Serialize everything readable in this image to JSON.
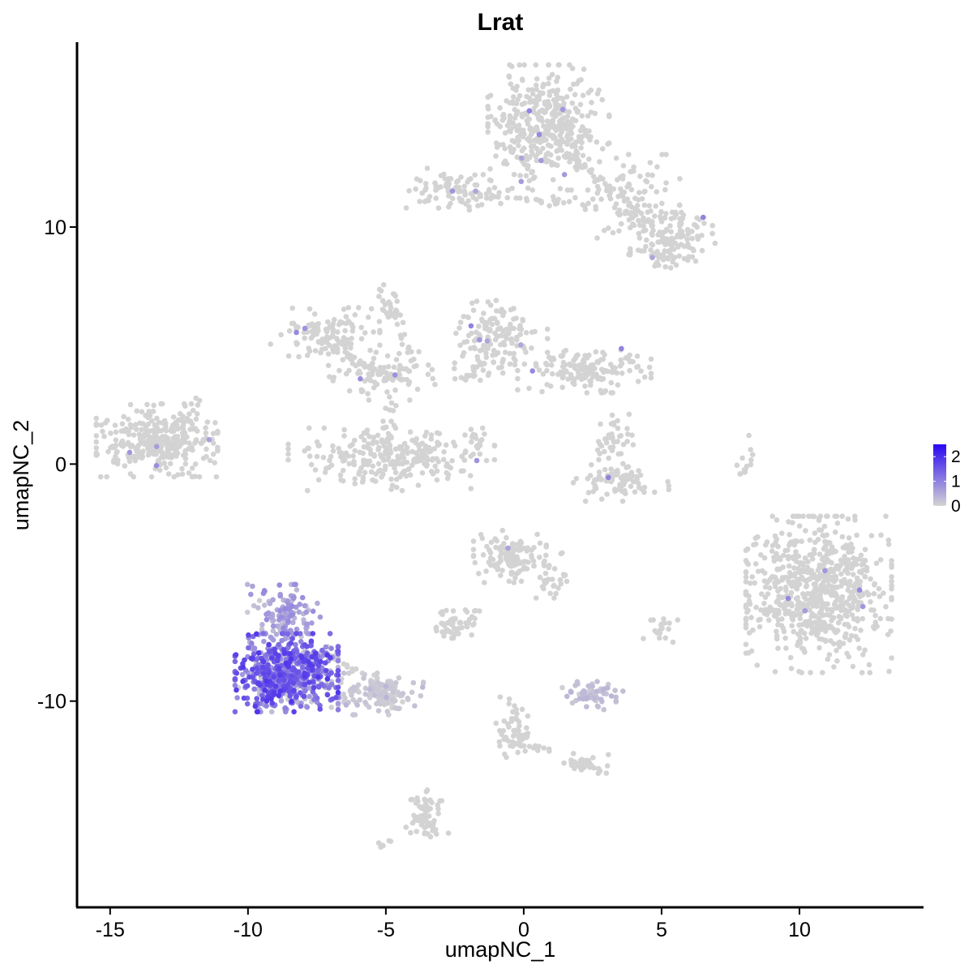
{
  "chart_data": {
    "type": "scatter",
    "title": "Lrat",
    "xlabel": "umapNC_1",
    "ylabel": "umapNC_2",
    "xlim": [
      -16.2,
      14.5
    ],
    "ylim": [
      -18.7,
      17.8
    ],
    "x_ticks": [
      -15,
      -10,
      -5,
      0,
      5,
      10
    ],
    "y_ticks": [
      -10,
      0,
      10
    ],
    "grid": false,
    "point_color_low": "#d3d3d3",
    "point_color_high": "#2a08f2",
    "legend": {
      "placement": "right",
      "min": 0,
      "max": 2.5,
      "ticks": [
        0,
        1,
        2
      ]
    },
    "clusters": [
      {
        "center": [
          0.9,
          14.2
        ],
        "spread": [
          1.0,
          1.2
        ],
        "n": 420,
        "expr": 0
      },
      {
        "center": [
          -2.4,
          11.6
        ],
        "spread": [
          0.9,
          0.4
        ],
        "n": 90,
        "expr": 0
      },
      {
        "center": [
          3.9,
          11.3
        ],
        "spread": [
          0.8,
          0.8
        ],
        "n": 90,
        "expr": 0
      },
      {
        "center": [
          5.4,
          9.6
        ],
        "spread": [
          0.7,
          0.6
        ],
        "n": 110,
        "expr": 0
      },
      {
        "center": [
          4.8,
          8.8
        ],
        "spread": [
          0.5,
          0.3
        ],
        "n": 30,
        "expr": 0
      },
      {
        "center": [
          -7.2,
          5.5
        ],
        "spread": [
          0.9,
          0.5
        ],
        "n": 110,
        "expr": 0
      },
      {
        "center": [
          -5.1,
          3.8
        ],
        "spread": [
          0.9,
          0.5
        ],
        "n": 90,
        "expr": 0
      },
      {
        "center": [
          -0.9,
          5.3
        ],
        "spread": [
          0.8,
          0.8
        ],
        "n": 150,
        "expr": 0
      },
      {
        "center": [
          2.2,
          4.0
        ],
        "spread": [
          1.1,
          0.45
        ],
        "n": 150,
        "expr": 0
      },
      {
        "center": [
          -4.8,
          0.2
        ],
        "spread": [
          1.7,
          0.6
        ],
        "n": 260,
        "expr": 0
      },
      {
        "center": [
          -13.3,
          1.0
        ],
        "spread": [
          1.0,
          0.7
        ],
        "n": 320,
        "expr": 0
      },
      {
        "center": [
          3.5,
          -0.8
        ],
        "spread": [
          0.8,
          0.35
        ],
        "n": 80,
        "expr": 0
      },
      {
        "center": [
          3.2,
          0.8
        ],
        "spread": [
          0.35,
          0.6
        ],
        "n": 45,
        "expr": 0
      },
      {
        "center": [
          -0.5,
          -3.9
        ],
        "spread": [
          0.6,
          0.5
        ],
        "n": 110,
        "expr": 0
      },
      {
        "center": [
          1.0,
          -4.8
        ],
        "spread": [
          0.4,
          0.5
        ],
        "n": 35,
        "expr": 0
      },
      {
        "center": [
          10.7,
          -5.5
        ],
        "spread": [
          1.2,
          1.5
        ],
        "n": 700,
        "expr": 0
      },
      {
        "center": [
          -2.6,
          -6.8
        ],
        "spread": [
          0.4,
          0.3
        ],
        "n": 45,
        "expr": 0
      },
      {
        "center": [
          -8.6,
          -8.8
        ],
        "spread": [
          0.85,
          0.75
        ],
        "n": 600,
        "expr": 1.25
      },
      {
        "center": [
          -8.7,
          -6.4
        ],
        "spread": [
          0.6,
          0.6
        ],
        "n": 120,
        "expr": 0.6
      },
      {
        "center": [
          -5.4,
          -9.7
        ],
        "spread": [
          0.8,
          0.4
        ],
        "n": 120,
        "expr": 0.12
      },
      {
        "center": [
          2.5,
          -9.7
        ],
        "spread": [
          0.5,
          0.3
        ],
        "n": 60,
        "expr": 0.25
      },
      {
        "center": [
          -0.4,
          -11.5
        ],
        "spread": [
          0.3,
          0.6
        ],
        "n": 40,
        "expr": 0
      },
      {
        "center": [
          2.3,
          -12.7
        ],
        "spread": [
          0.35,
          0.2
        ],
        "n": 25,
        "expr": 0
      },
      {
        "center": [
          -3.5,
          -14.8
        ],
        "spread": [
          0.35,
          0.5
        ],
        "n": 45,
        "expr": 0
      },
      {
        "center": [
          5.0,
          -7.0
        ],
        "spread": [
          0.3,
          0.3
        ],
        "n": 18,
        "expr": 0
      }
    ],
    "strands": [
      {
        "from": [
          -2.0,
          11.3
        ],
        "to": [
          2.5,
          11.0
        ],
        "n": 30
      },
      {
        "from": [
          2.0,
          12.8
        ],
        "to": [
          4.5,
          10.0
        ],
        "n": 30
      },
      {
        "from": [
          -5.3,
          7.5
        ],
        "to": [
          -4.0,
          4.5
        ],
        "n": 25
      },
      {
        "from": [
          -7.0,
          5.0
        ],
        "to": [
          -4.8,
          3.6
        ],
        "n": 30
      },
      {
        "from": [
          -4.7,
          2.7
        ],
        "to": [
          -5.0,
          0.5
        ],
        "n": 18
      },
      {
        "from": [
          -2.3,
          3.5
        ],
        "to": [
          -1.0,
          4.8
        ],
        "n": 15
      },
      {
        "from": [
          -2.3,
          1.6
        ],
        "to": [
          -1.3,
          0.6
        ],
        "n": 12
      },
      {
        "from": [
          -12.6,
          1.5
        ],
        "to": [
          -11.7,
          2.8
        ],
        "n": 12
      },
      {
        "from": [
          -7.3,
          -7.8
        ],
        "to": [
          -4.5,
          -10.2
        ],
        "n": 40
      },
      {
        "from": [
          -0.7,
          -9.5
        ],
        "to": [
          0.0,
          -12.0
        ],
        "n": 20
      },
      {
        "from": [
          0.2,
          -11.8
        ],
        "to": [
          2.5,
          -12.8
        ],
        "n": 20
      },
      {
        "from": [
          -3.9,
          -14.0
        ],
        "to": [
          -3.2,
          -15.5
        ],
        "n": 15
      },
      {
        "from": [
          7.9,
          -0.5
        ],
        "to": [
          8.4,
          1.0
        ],
        "n": 15
      },
      {
        "from": [
          -4.8,
          7.6
        ],
        "to": [
          -4.3,
          5.6
        ],
        "n": 12
      },
      {
        "from": [
          -2.0,
          -7.0
        ],
        "to": [
          -1.6,
          -5.8
        ],
        "n": 8
      },
      {
        "from": [
          -5.6,
          -16.2
        ],
        "to": [
          -4.8,
          -15.9
        ],
        "n": 6
      }
    ]
  }
}
